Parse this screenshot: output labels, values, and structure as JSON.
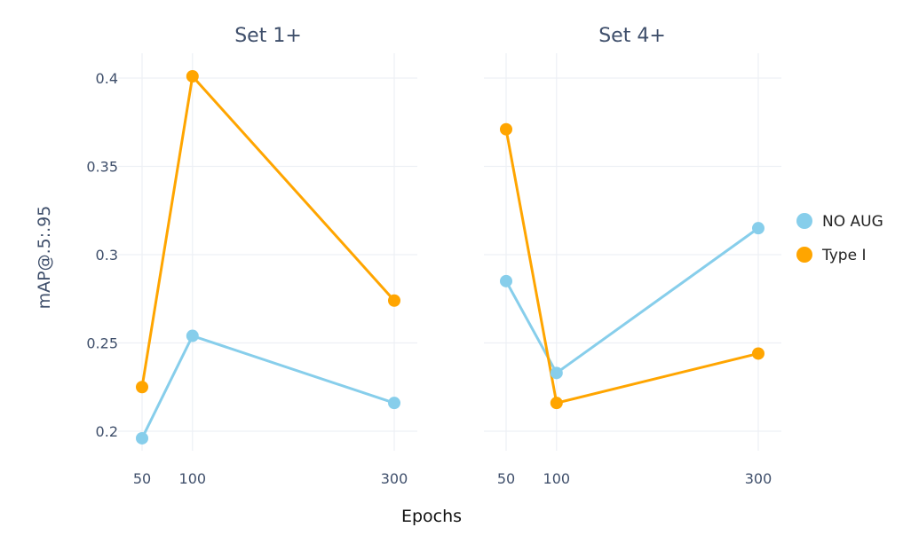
{
  "chart_data": {
    "type": "line",
    "xlabel": "Epochs",
    "ylabel": "mAP@.5:.95",
    "ylim": [
      0.19,
      0.41
    ],
    "yticks": [
      0.2,
      0.25,
      0.3,
      0.35,
      0.4
    ],
    "ytick_labels": [
      "0.2",
      "0.25",
      "0.3",
      "0.35",
      "0.4"
    ],
    "x": [
      50,
      100,
      300
    ],
    "xlim": [
      40,
      310
    ],
    "xtick_labels": [
      "50",
      "100",
      "300"
    ],
    "grid": true,
    "legend_position": "right",
    "legend": [
      {
        "name": "NO AUG",
        "color": "#87ceeb"
      },
      {
        "name": "Type I",
        "color": "#ffa500"
      }
    ],
    "panels": [
      {
        "title": "Set 1+",
        "series": [
          {
            "name": "NO AUG",
            "values": [
              0.196,
              0.254,
              0.216
            ]
          },
          {
            "name": "Type I",
            "values": [
              0.225,
              0.401,
              0.274
            ]
          }
        ]
      },
      {
        "title": "Set 4+",
        "series": [
          {
            "name": "NO AUG",
            "values": [
              0.285,
              0.233,
              0.315
            ]
          },
          {
            "name": "Type I",
            "values": [
              0.371,
              0.216,
              0.244
            ]
          }
        ]
      }
    ]
  }
}
